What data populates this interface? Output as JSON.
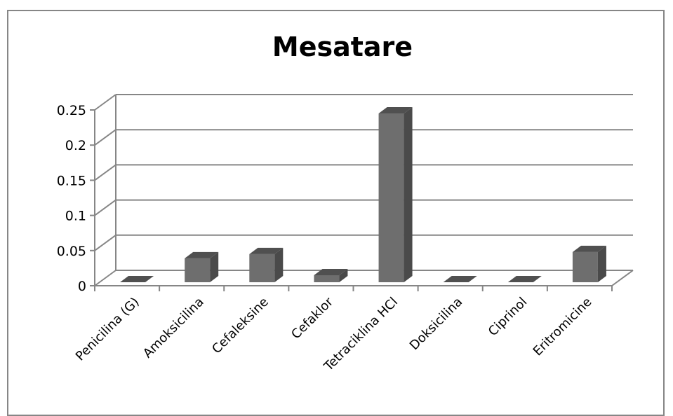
{
  "chart_data": {
    "type": "bar",
    "title": "Mesatare",
    "categories": [
      "Penicilina (G)",
      "Amoksicilina",
      "Cefaleksine",
      "Cefaklor",
      "Tetraciklina HCl",
      "Doksicilina",
      "Ciprinol",
      "Eritromicine"
    ],
    "values": [
      0,
      0.034,
      0.04,
      0.01,
      0.24,
      0,
      0,
      0.043
    ],
    "yticks": [
      "0",
      "0.05",
      "0.1",
      "0.15",
      "0.2",
      "0.25"
    ],
    "ylim": [
      0,
      0.25
    ],
    "grid": true,
    "legend": "none",
    "bar_color": "#6e6e6e"
  }
}
